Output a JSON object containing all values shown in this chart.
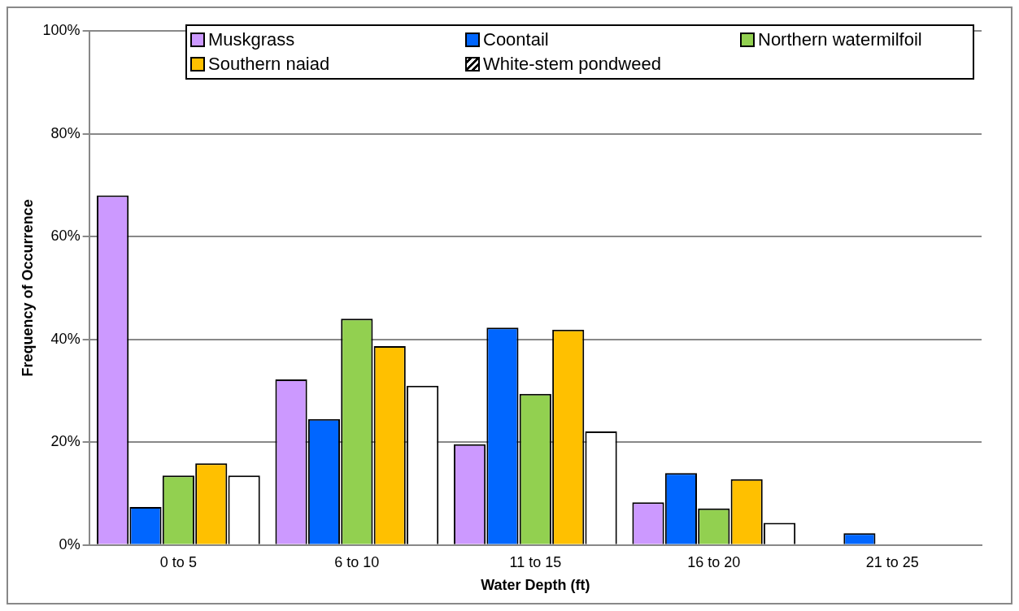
{
  "chart_data": {
    "type": "bar",
    "xlabel": "Water Depth (ft)",
    "ylabel": "Frequency of Occurrence",
    "categories": [
      "0 to 5",
      "6 to 10",
      "11 to 15",
      "16 to 20",
      "21 to 25"
    ],
    "series": [
      {
        "name": "Muskgrass",
        "color": "#cc99ff",
        "values": [
          68,
          32.2,
          19.6,
          8.3,
          0
        ]
      },
      {
        "name": "Coontail",
        "color": "#0066ff",
        "values": [
          7.4,
          24.5,
          42.3,
          14,
          2.3
        ]
      },
      {
        "name": "Northern watermilfoil",
        "color": "#92d050",
        "values": [
          13.5,
          44,
          29.4,
          7.1,
          0
        ]
      },
      {
        "name": "Southern naiad",
        "color": "#ffc000",
        "values": [
          15.9,
          38.7,
          41.9,
          12.8,
          0
        ]
      },
      {
        "name": "White-stem pondweed",
        "color": "#ffffff",
        "values": [
          13.5,
          31,
          22.1,
          4.3,
          0
        ]
      }
    ],
    "ylim": [
      0,
      100
    ],
    "yticks": [
      {
        "value": 0,
        "label": "0%"
      },
      {
        "value": 20,
        "label": "20%"
      },
      {
        "value": 40,
        "label": "40%"
      },
      {
        "value": 60,
        "label": "60%"
      },
      {
        "value": 80,
        "label": "80%"
      },
      {
        "value": 100,
        "label": "100%"
      }
    ],
    "grid": "y",
    "legend": "top"
  }
}
